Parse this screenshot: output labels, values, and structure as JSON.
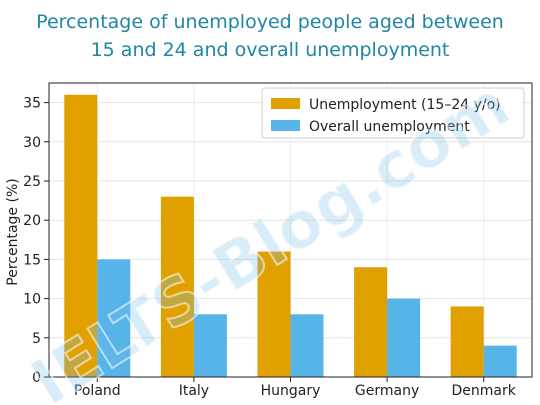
{
  "chart_data": {
    "type": "bar",
    "title_line1": "Percentage of unemployed people aged between",
    "title_line2": "15 and 24 and overall unemployment",
    "ylabel": "Percentage (%)",
    "xlabel": "",
    "categories": [
      "Poland",
      "Italy",
      "Hungary",
      "Germany",
      "Denmark"
    ],
    "series": [
      {
        "name": "Unemployment (15–24 y/o)",
        "values": [
          36,
          23,
          16,
          14,
          9
        ],
        "color": "#e0a000"
      },
      {
        "name": "Overall unemployment",
        "values": [
          15,
          8,
          8,
          10,
          4
        ],
        "color": "#56b4e9"
      }
    ],
    "yticks": [
      "0",
      "5",
      "10",
      "15",
      "20",
      "25",
      "30",
      "35"
    ],
    "ylim": [
      0,
      37.5
    ],
    "grid": true,
    "legend_position": "top-right"
  },
  "watermark": "IELTS-Blog.com"
}
